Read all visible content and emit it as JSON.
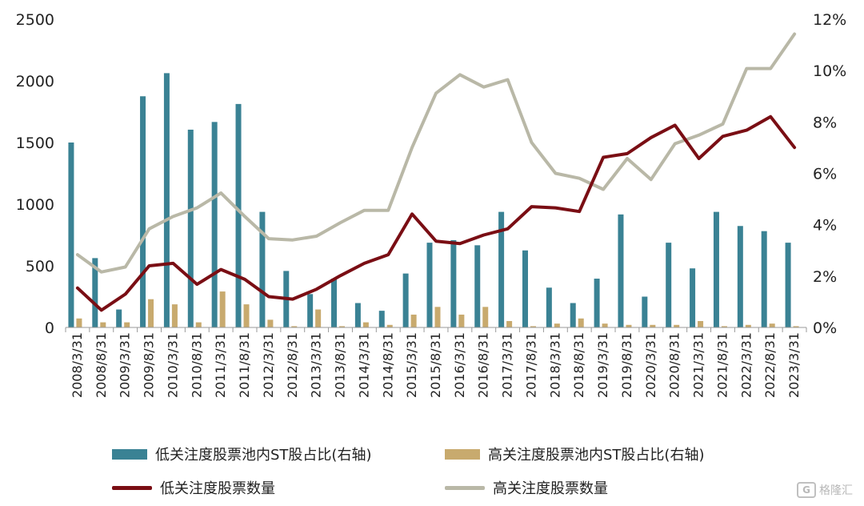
{
  "chart_data": {
    "type": "bar",
    "title": "",
    "categories": [
      "2008/3/31",
      "2008/8/31",
      "2009/3/31",
      "2009/8/31",
      "2010/3/31",
      "2010/8/31",
      "2011/3/31",
      "2011/8/31",
      "2012/3/31",
      "2012/8/31",
      "2013/3/31",
      "2013/8/31",
      "2014/3/31",
      "2014/8/31",
      "2015/3/31",
      "2015/8/31",
      "2016/3/31",
      "2016/8/31",
      "2017/3/31",
      "2017/8/31",
      "2018/3/31",
      "2018/8/31",
      "2019/3/31",
      "2019/8/31",
      "2020/3/31",
      "2020/8/31",
      "2021/3/31",
      "2021/8/31",
      "2022/3/31",
      "2022/8/31",
      "2023/3/31"
    ],
    "y_left": {
      "lim": [
        0,
        2500
      ],
      "ticks": [
        "0",
        "500",
        "1000",
        "1500",
        "2000",
        "2500"
      ]
    },
    "y_right": {
      "lim": [
        0,
        12
      ],
      "ticks": [
        "0%",
        "2%",
        "4%",
        "6%",
        "8%",
        "10%",
        "12%"
      ]
    },
    "series": [
      {
        "name": "低关注度股票池内ST股占比(右轴)",
        "kind": "bar",
        "axis": "right",
        "color": "#3a8294",
        "values": [
          7.2,
          2.7,
          0.7,
          9.0,
          9.9,
          7.7,
          8.0,
          8.7,
          4.5,
          2.2,
          1.3,
          1.9,
          0.95,
          0.65,
          2.1,
          3.3,
          3.4,
          3.2,
          4.5,
          3.0,
          1.55,
          0.95,
          1.9,
          4.4,
          1.2,
          3.3,
          2.3,
          4.5,
          3.95,
          3.75,
          3.3
        ]
      },
      {
        "name": "高关注度股票池内ST股占比(右轴)",
        "kind": "bar",
        "axis": "right",
        "color": "#c8aa6e",
        "values": [
          0.35,
          0.2,
          0.2,
          1.1,
          0.9,
          0.2,
          1.4,
          0.9,
          0.3,
          0.05,
          0.7,
          0.05,
          0.2,
          0.1,
          0.5,
          0.8,
          0.5,
          0.8,
          0.25,
          0.05,
          0.15,
          0.35,
          0.15,
          0.1,
          0.1,
          0.1,
          0.25,
          0.05,
          0.1,
          0.15,
          0.05
        ]
      },
      {
        "name": "低关注度股票数量",
        "kind": "line",
        "axis": "left",
        "color": "#7a0e14",
        "values": [
          320,
          140,
          270,
          500,
          520,
          350,
          470,
          390,
          250,
          230,
          310,
          420,
          520,
          590,
          920,
          700,
          680,
          750,
          800,
          980,
          970,
          940,
          1380,
          1410,
          1540,
          1640,
          1370,
          1550,
          1600,
          1710,
          1460
        ]
      },
      {
        "name": "高关注度股票数量",
        "kind": "line",
        "axis": "left",
        "color": "#b9b8a7",
        "values": [
          590,
          450,
          490,
          800,
          900,
          970,
          1090,
          900,
          720,
          710,
          740,
          850,
          950,
          950,
          1460,
          1900,
          2050,
          1950,
          2010,
          1500,
          1250,
          1210,
          1120,
          1370,
          1200,
          1490,
          1560,
          1650,
          2100,
          2100,
          2380
        ]
      }
    ]
  },
  "legend": {
    "low_pct": "低关注度股票池内ST股占比(右轴)",
    "high_pct": "高关注度股票池内ST股占比(右轴)",
    "low_count": "低关注度股票数量",
    "high_count": "高关注度股票数量"
  },
  "watermark": {
    "logo": "G",
    "text": "格隆汇"
  }
}
